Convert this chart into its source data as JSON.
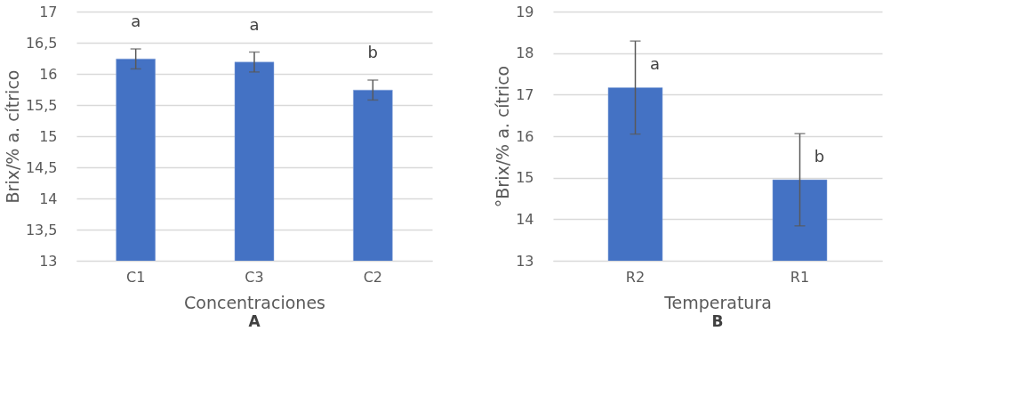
{
  "chart_data": [
    {
      "type": "bar",
      "xlabel": "Concentraciones",
      "ylabel": "Brix/% a. cítrico",
      "categories": [
        "C1",
        "C3",
        "C2"
      ],
      "values": [
        16.24,
        16.19,
        15.74
      ],
      "errors": [
        0.16,
        0.16,
        0.16
      ],
      "color": "#4472c4",
      "ylim": [
        13,
        17
      ],
      "yticks": [
        13,
        {
          "value": 13.5,
          "label": "13,5"
        },
        14,
        {
          "value": 14.5,
          "label": "14,5"
        },
        15,
        {
          "value": 15.5,
          "label": "15,5"
        },
        16,
        {
          "value": 16.5,
          "label": "16,5"
        },
        17
      ],
      "grid": "y",
      "annotations": [
        "a",
        "a",
        "b",
        "A"
      ]
    },
    {
      "type": "bar",
      "xlabel": "Temperatura",
      "ylabel": "°Brix/% a. cítrico",
      "categories": [
        "R2",
        "R1"
      ],
      "values": [
        17.17,
        14.95
      ],
      "errors": [
        1.12,
        1.11
      ],
      "color": "#4472c4",
      "ylim": [
        13,
        19
      ],
      "yticks": [
        13,
        14,
        15,
        16,
        17,
        18,
        19
      ],
      "grid": "y",
      "annotations": [
        "a",
        "b",
        "B"
      ]
    }
  ]
}
